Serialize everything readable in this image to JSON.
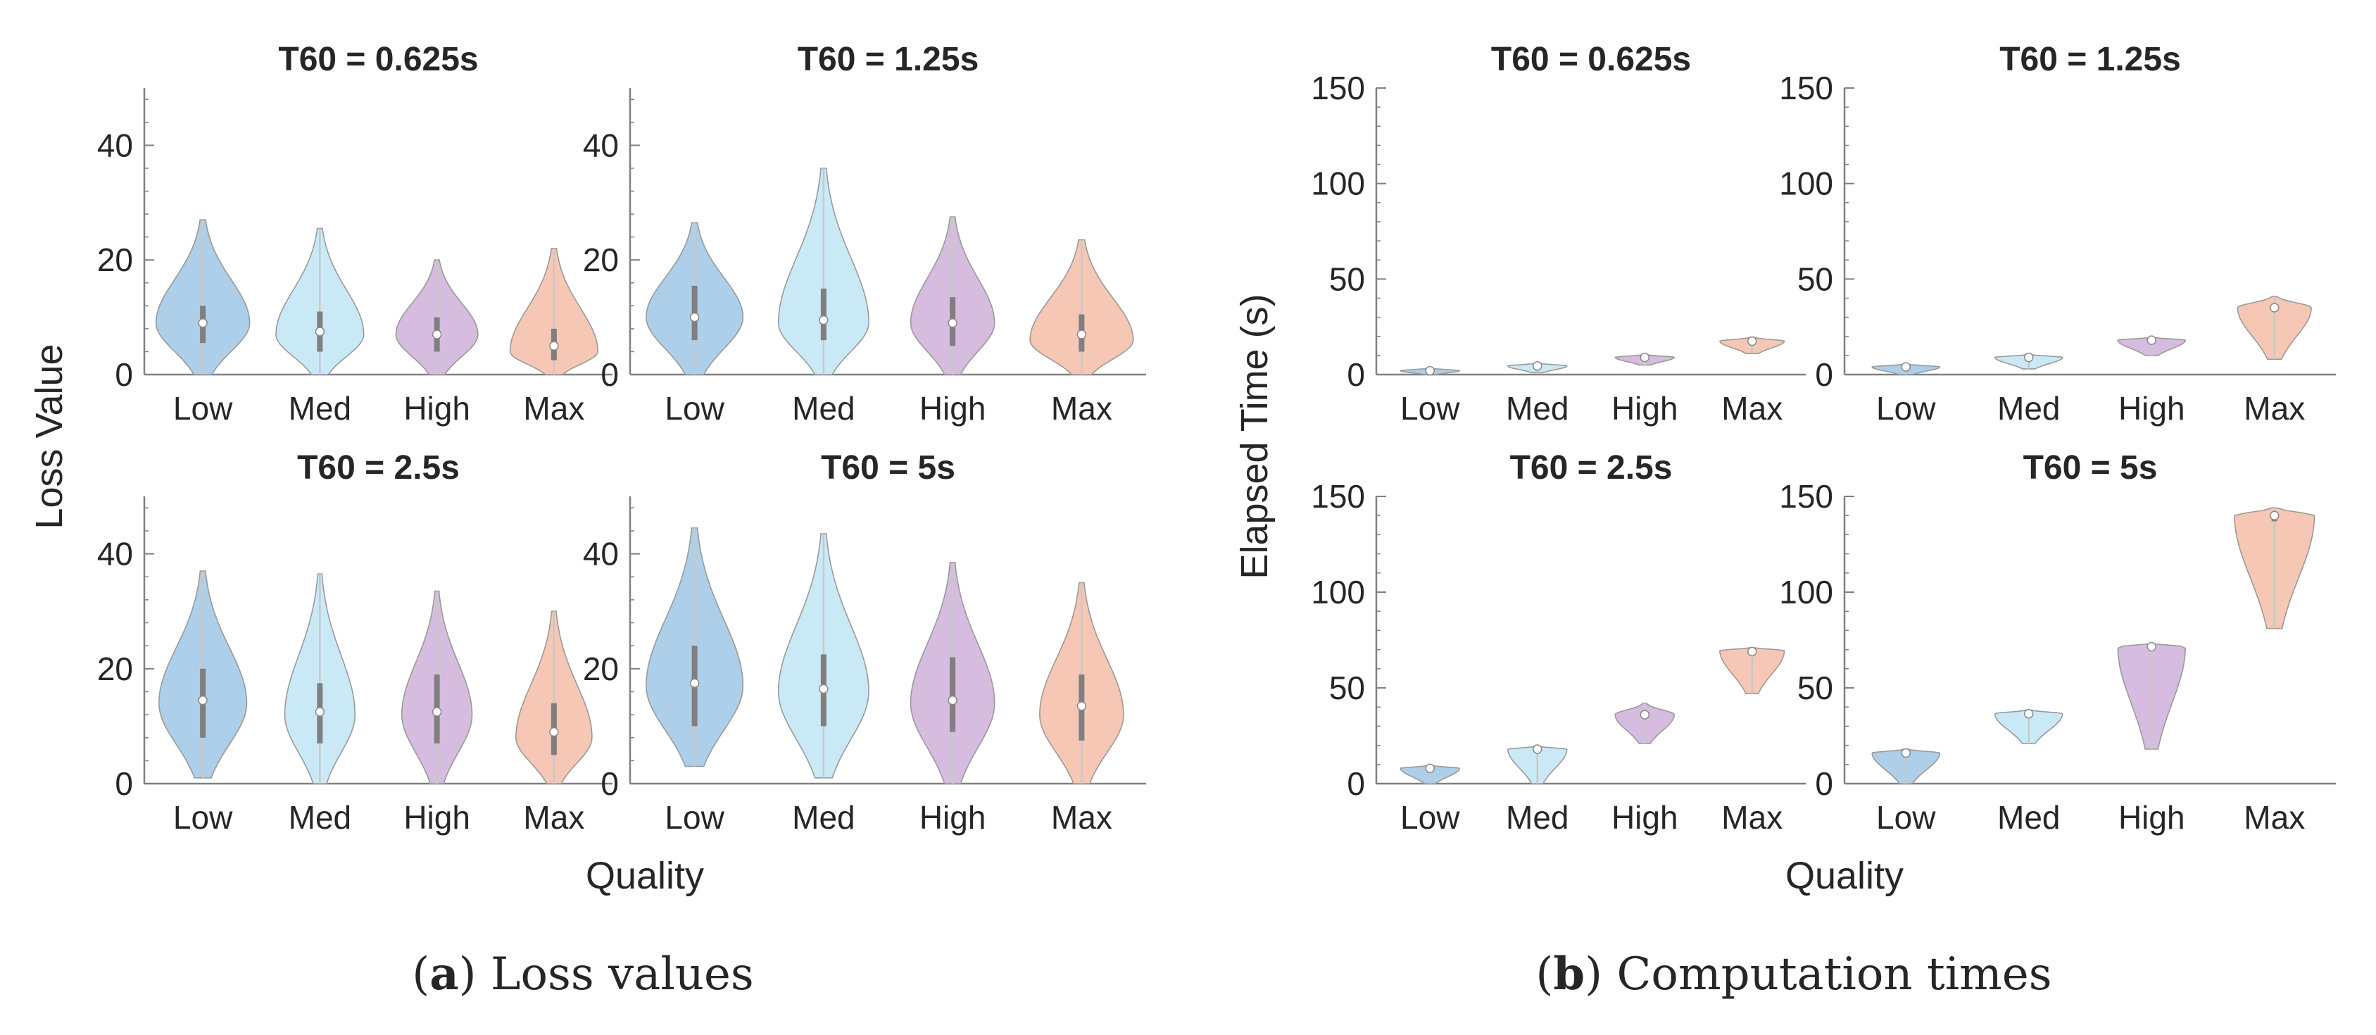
{
  "figure": {
    "subcaptions": [
      {
        "letter": "a",
        "text": ") Loss values",
        "open": "("
      },
      {
        "letter": "b",
        "text": ") Computation times",
        "open": "("
      }
    ]
  },
  "colors": {
    "categories": [
      "#a9cce8",
      "#c7e8f7",
      "#d4b8dc",
      "#f5c4b0"
    ],
    "violin_stroke": "#9a9a9a",
    "whisker": "#c8c8c8",
    "box": "#7f7f7f",
    "median": "#ffffff",
    "axis": "#808080",
    "text": "#262626"
  },
  "chart_data": [
    {
      "panel": "a",
      "type": "violin",
      "ylabel": "Loss Value",
      "xlabel": "Quality",
      "categories": [
        "Low",
        "Med",
        "High",
        "Max"
      ],
      "ylim": [
        0,
        50
      ],
      "yticks": [
        0,
        20,
        40
      ],
      "subplots": [
        {
          "title": "T60 = 0.625s",
          "series": [
            {
              "category": "Low",
              "median": 9,
              "q1": 5.5,
              "q3": 12,
              "min": 0,
              "max": 27,
              "peak": 9,
              "width": 0.8
            },
            {
              "category": "Med",
              "median": 7.5,
              "q1": 4,
              "q3": 11,
              "min": 0,
              "max": 25.5,
              "peak": 7,
              "width": 0.75
            },
            {
              "category": "High",
              "median": 7,
              "q1": 4,
              "q3": 10,
              "min": 0,
              "max": 20,
              "peak": 7,
              "width": 0.7
            },
            {
              "category": "Max",
              "median": 5,
              "q1": 2.5,
              "q3": 8,
              "min": 0,
              "max": 22,
              "peak": 4,
              "width": 0.75
            }
          ]
        },
        {
          "title": "T60 = 1.25s",
          "series": [
            {
              "category": "Low",
              "median": 10,
              "q1": 6,
              "q3": 15.5,
              "min": 0,
              "max": 26.5,
              "peak": 10,
              "width": 0.75
            },
            {
              "category": "Med",
              "median": 9.5,
              "q1": 6,
              "q3": 15,
              "min": 0,
              "max": 36,
              "peak": 9,
              "width": 0.7
            },
            {
              "category": "High",
              "median": 9,
              "q1": 5,
              "q3": 13.5,
              "min": 0,
              "max": 27.5,
              "peak": 9,
              "width": 0.65
            },
            {
              "category": "Max",
              "median": 7,
              "q1": 4,
              "q3": 10.5,
              "min": 0,
              "max": 23.5,
              "peak": 6,
              "width": 0.8
            }
          ]
        },
        {
          "title": "T60 = 2.5s",
          "series": [
            {
              "category": "Low",
              "median": 14.5,
              "q1": 8,
              "q3": 20,
              "min": 1,
              "max": 37,
              "peak": 14,
              "width": 0.75
            },
            {
              "category": "Med",
              "median": 12.5,
              "q1": 7,
              "q3": 17.5,
              "min": 0,
              "max": 36.5,
              "peak": 12,
              "width": 0.6
            },
            {
              "category": "High",
              "median": 12.5,
              "q1": 7,
              "q3": 19,
              "min": 0,
              "max": 33.5,
              "peak": 12,
              "width": 0.6
            },
            {
              "category": "Max",
              "median": 9,
              "q1": 5,
              "q3": 14,
              "min": 0,
              "max": 30,
              "peak": 8,
              "width": 0.65
            }
          ]
        },
        {
          "title": "T60 = 5s",
          "series": [
            {
              "category": "Low",
              "median": 17.5,
              "q1": 10,
              "q3": 24,
              "min": 3,
              "max": 44.5,
              "peak": 17,
              "width": 0.75
            },
            {
              "category": "Med",
              "median": 16.5,
              "q1": 10,
              "q3": 22.5,
              "min": 1,
              "max": 43.5,
              "peak": 16,
              "width": 0.7
            },
            {
              "category": "High",
              "median": 14.5,
              "q1": 9,
              "q3": 22,
              "min": 0,
              "max": 38.5,
              "peak": 14,
              "width": 0.65
            },
            {
              "category": "Max",
              "median": 13.5,
              "q1": 7.5,
              "q3": 19,
              "min": 0,
              "max": 35,
              "peak": 12,
              "width": 0.65
            }
          ]
        }
      ]
    },
    {
      "panel": "b",
      "type": "violin",
      "ylabel": "Elapsed Time (s)",
      "xlabel": "Quality",
      "categories": [
        "Low",
        "Med",
        "High",
        "Max"
      ],
      "ylim": [
        0,
        150
      ],
      "yticks": [
        0,
        50,
        100,
        150
      ],
      "subplots": [
        {
          "title": "T60 = 0.625s",
          "series": [
            {
              "category": "Low",
              "median": 2,
              "q1": 1.5,
              "q3": 2.5,
              "min": 0,
              "max": 3,
              "peak": 2,
              "width": 0.55
            },
            {
              "category": "Med",
              "median": 4.5,
              "q1": 4,
              "q3": 5,
              "min": 1,
              "max": 6,
              "peak": 4.5,
              "width": 0.55
            },
            {
              "category": "High",
              "median": 9,
              "q1": 8.5,
              "q3": 9.5,
              "min": 5,
              "max": 10.5,
              "peak": 9,
              "width": 0.55
            },
            {
              "category": "Max",
              "median": 17.5,
              "q1": 17,
              "q3": 18,
              "min": 11,
              "max": 19.5,
              "peak": 17.5,
              "width": 0.6
            }
          ]
        },
        {
          "title": "T60 = 1.25s",
          "series": [
            {
              "category": "Low",
              "median": 4,
              "q1": 3.5,
              "q3": 4.5,
              "min": 0,
              "max": 5.5,
              "peak": 4,
              "width": 0.55
            },
            {
              "category": "Med",
              "median": 9,
              "q1": 8.5,
              "q3": 9.5,
              "min": 3,
              "max": 10.5,
              "peak": 9,
              "width": 0.55
            },
            {
              "category": "High",
              "median": 18,
              "q1": 17.5,
              "q3": 18.5,
              "min": 10,
              "max": 19.5,
              "peak": 18,
              "width": 0.55
            },
            {
              "category": "Max",
              "median": 35,
              "q1": 34,
              "q3": 36,
              "min": 8,
              "max": 41,
              "peak": 35,
              "width": 0.6
            }
          ]
        },
        {
          "title": "T60 = 2.5s",
          "series": [
            {
              "category": "Low",
              "median": 8,
              "q1": 7.5,
              "q3": 8.5,
              "min": 0,
              "max": 9.5,
              "peak": 8,
              "width": 0.55
            },
            {
              "category": "Med",
              "median": 18,
              "q1": 17.5,
              "q3": 18.5,
              "min": 0,
              "max": 19.5,
              "peak": 18,
              "width": 0.55
            },
            {
              "category": "High",
              "median": 36,
              "q1": 35.5,
              "q3": 36.5,
              "min": 21,
              "max": 42,
              "peak": 36,
              "width": 0.55
            },
            {
              "category": "Max",
              "median": 69,
              "q1": 68.5,
              "q3": 70,
              "min": 47,
              "max": 71,
              "peak": 69.5,
              "width": 0.6
            }
          ]
        },
        {
          "title": "T60 = 5s",
          "series": [
            {
              "category": "Low",
              "median": 16,
              "q1": 15.5,
              "q3": 16.5,
              "min": 0,
              "max": 18,
              "peak": 16,
              "width": 0.55
            },
            {
              "category": "Med",
              "median": 36.5,
              "q1": 36,
              "q3": 37,
              "min": 21,
              "max": 38.5,
              "peak": 36.5,
              "width": 0.55
            },
            {
              "category": "High",
              "median": 71.5,
              "q1": 71,
              "q3": 72,
              "min": 18,
              "max": 73,
              "peak": 71.5,
              "width": 0.55
            },
            {
              "category": "Max",
              "median": 140,
              "q1": 137,
              "q3": 142,
              "min": 81,
              "max": 144,
              "peak": 140,
              "width": 0.65
            }
          ]
        }
      ]
    }
  ]
}
